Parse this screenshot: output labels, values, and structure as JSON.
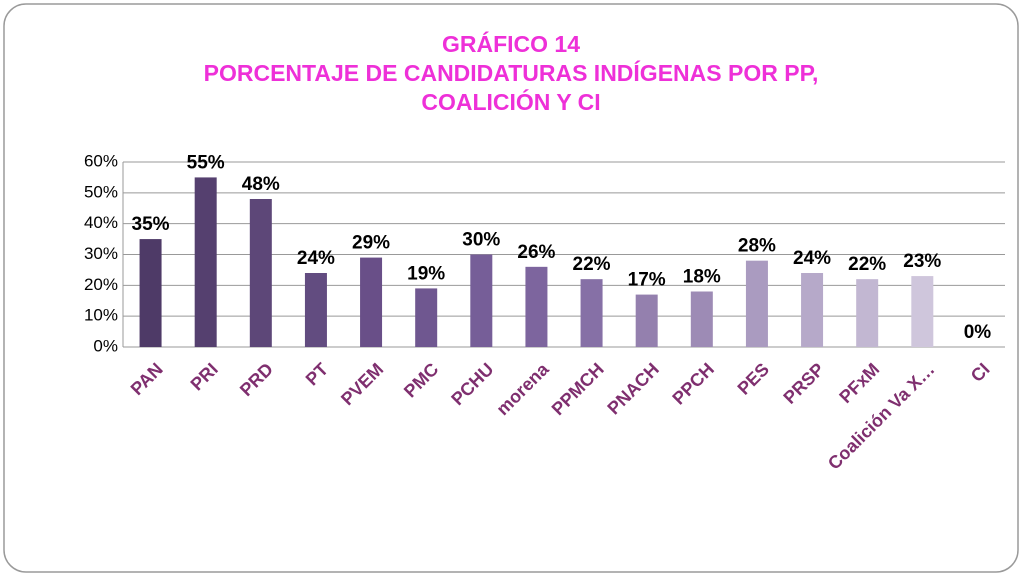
{
  "chart_data": {
    "type": "bar",
    "title": [
      "GRÁFICO 14",
      "PORCENTAJE DE CANDIDATURAS INDÍGENAS POR PP,",
      "COALICIÓN Y CI"
    ],
    "categories": [
      "PAN",
      "PRI",
      "PRD",
      "PT",
      "PVEM",
      "PMC",
      "PCHU",
      "morena",
      "PPMCH",
      "PNACH",
      "PPCH",
      "PES",
      "PRSP",
      "PFxM",
      "Coalición Va X…",
      "CI"
    ],
    "values": [
      35,
      55,
      48,
      24,
      29,
      19,
      30,
      26,
      22,
      17,
      18,
      28,
      24,
      22,
      23,
      0
    ],
    "value_labels": [
      "35%",
      "55%",
      "48%",
      "24%",
      "29%",
      "19%",
      "30%",
      "26%",
      "22%",
      "17%",
      "18%",
      "28%",
      "24%",
      "22%",
      "23%",
      "0%"
    ],
    "colors": [
      "#4e3a67",
      "#55406f",
      "#5d4778",
      "#624c80",
      "#694f88",
      "#6f5790",
      "#765e98",
      "#7d659e",
      "#8670a6",
      "#9480ae",
      "#9d8bb5",
      "#aa9bc0",
      "#b6a9c9",
      "#c2b7d2",
      "#cfc6dc",
      "#dcd5e6"
    ],
    "ylim": [
      0,
      60
    ],
    "yticks": [
      {
        "value": 0,
        "label": "0%"
      },
      {
        "value": 10,
        "label": "10%"
      },
      {
        "value": 20,
        "label": "20%"
      },
      {
        "value": 30,
        "label": "30%"
      },
      {
        "value": 40,
        "label": "40%"
      },
      {
        "value": 50,
        "label": "50%"
      },
      {
        "value": 60,
        "label": "60%"
      }
    ],
    "grid": true
  }
}
